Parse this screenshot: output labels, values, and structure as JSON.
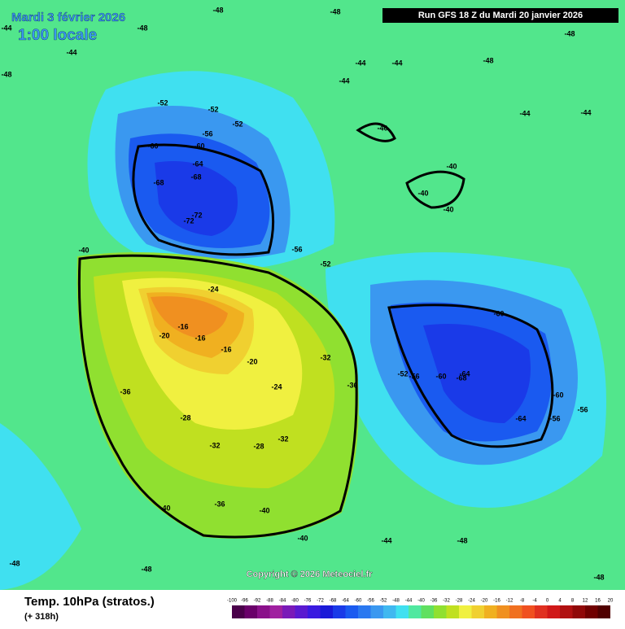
{
  "header": {
    "date": "Mardi 3 février 2026",
    "time": "1:00 locale",
    "run": "Run GFS 18 Z du Mardi 20 janvier 2026"
  },
  "copyright": "Copyright © 2026 Meteociel.fr",
  "footer": {
    "title": "Temp. 10hPa (stratos.)",
    "lead": "(+ 318h)"
  },
  "colorbar": {
    "ticks": [
      -100,
      -96,
      -92,
      -88,
      -84,
      -80,
      -76,
      -72,
      -68,
      -64,
      -60,
      -56,
      -52,
      -48,
      -44,
      -40,
      -36,
      -32,
      -28,
      -24,
      -20,
      -16,
      -12,
      -8,
      -4,
      0,
      4,
      8,
      12,
      16,
      20
    ],
    "colors": [
      "#4a004a",
      "#6a006a",
      "#8a108a",
      "#a020a0",
      "#7a1ab8",
      "#5a1ad0",
      "#3a1ae0",
      "#1a1ad8",
      "#1a3ae8",
      "#1a5af0",
      "#2a78f0",
      "#3a98f0",
      "#40b8f0",
      "#40e0f0",
      "#50e8a0",
      "#60e060",
      "#90e030",
      "#c0e020",
      "#f0f040",
      "#f0d030",
      "#f0b020",
      "#f09020",
      "#f07020",
      "#f05020",
      "#e03020",
      "#d01818",
      "#b01010",
      "#900808",
      "#700000",
      "#500000"
    ]
  },
  "contour_labels": [
    -44,
    -48,
    -48,
    -48,
    -48,
    -48,
    -44,
    -44,
    -44,
    -48,
    -48,
    -52,
    -52,
    -52,
    -56,
    -60,
    -60,
    -64,
    -68,
    -68,
    -72,
    -72,
    -56,
    -52,
    -40,
    -40,
    -40,
    -40,
    -40,
    -24,
    -16,
    -16,
    -16,
    -20,
    -20,
    -24,
    -28,
    -28,
    -32,
    -32,
    -32,
    -36,
    -36,
    -60,
    -68,
    -60,
    -56,
    -64,
    -60,
    -64,
    -56,
    -56,
    -52,
    -40,
    -40,
    -36,
    -40,
    -44,
    -48,
    -48,
    -48,
    -48,
    -44,
    -44,
    -44
  ]
}
